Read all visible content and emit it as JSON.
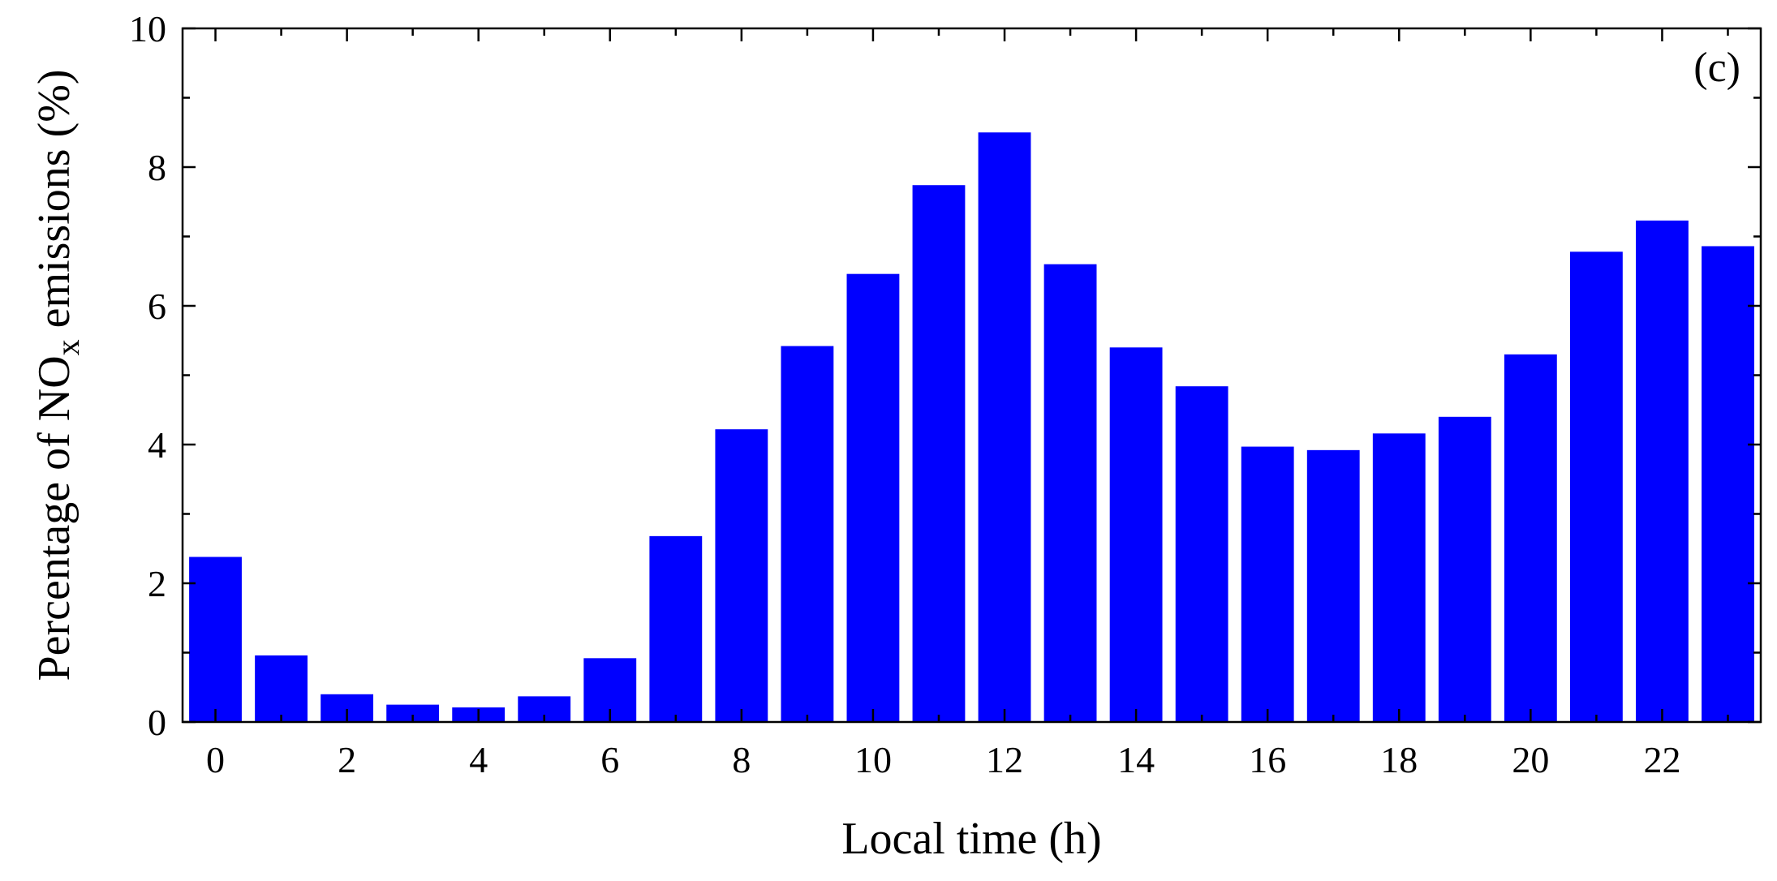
{
  "chart_data": {
    "type": "bar",
    "panel_label": "(c)",
    "xlabel": "Local time (h)",
    "ylabel": {
      "prefix": "Percentage of NO",
      "subscript": "x",
      "suffix": " emissions (%)"
    },
    "x": [
      0,
      1,
      2,
      3,
      4,
      5,
      6,
      7,
      8,
      9,
      10,
      11,
      12,
      13,
      14,
      15,
      16,
      17,
      18,
      19,
      20,
      21,
      22,
      23
    ],
    "values": [
      2.38,
      0.96,
      0.4,
      0.25,
      0.21,
      0.37,
      0.92,
      2.68,
      4.22,
      5.42,
      6.46,
      7.74,
      8.5,
      6.6,
      5.4,
      4.84,
      3.97,
      3.92,
      4.16,
      4.4,
      5.3,
      6.78,
      7.23,
      6.86
    ],
    "xticks": [
      "0",
      "2",
      "4",
      "6",
      "8",
      "10",
      "12",
      "14",
      "16",
      "18",
      "20",
      "22"
    ],
    "yticks": [
      "0",
      "2",
      "4",
      "6",
      "8",
      "10"
    ],
    "xlim": [
      -0.5,
      23.5
    ],
    "ylim": [
      0,
      10
    ],
    "bar_color": "#0000ff",
    "legend": "none",
    "grid": false
  }
}
